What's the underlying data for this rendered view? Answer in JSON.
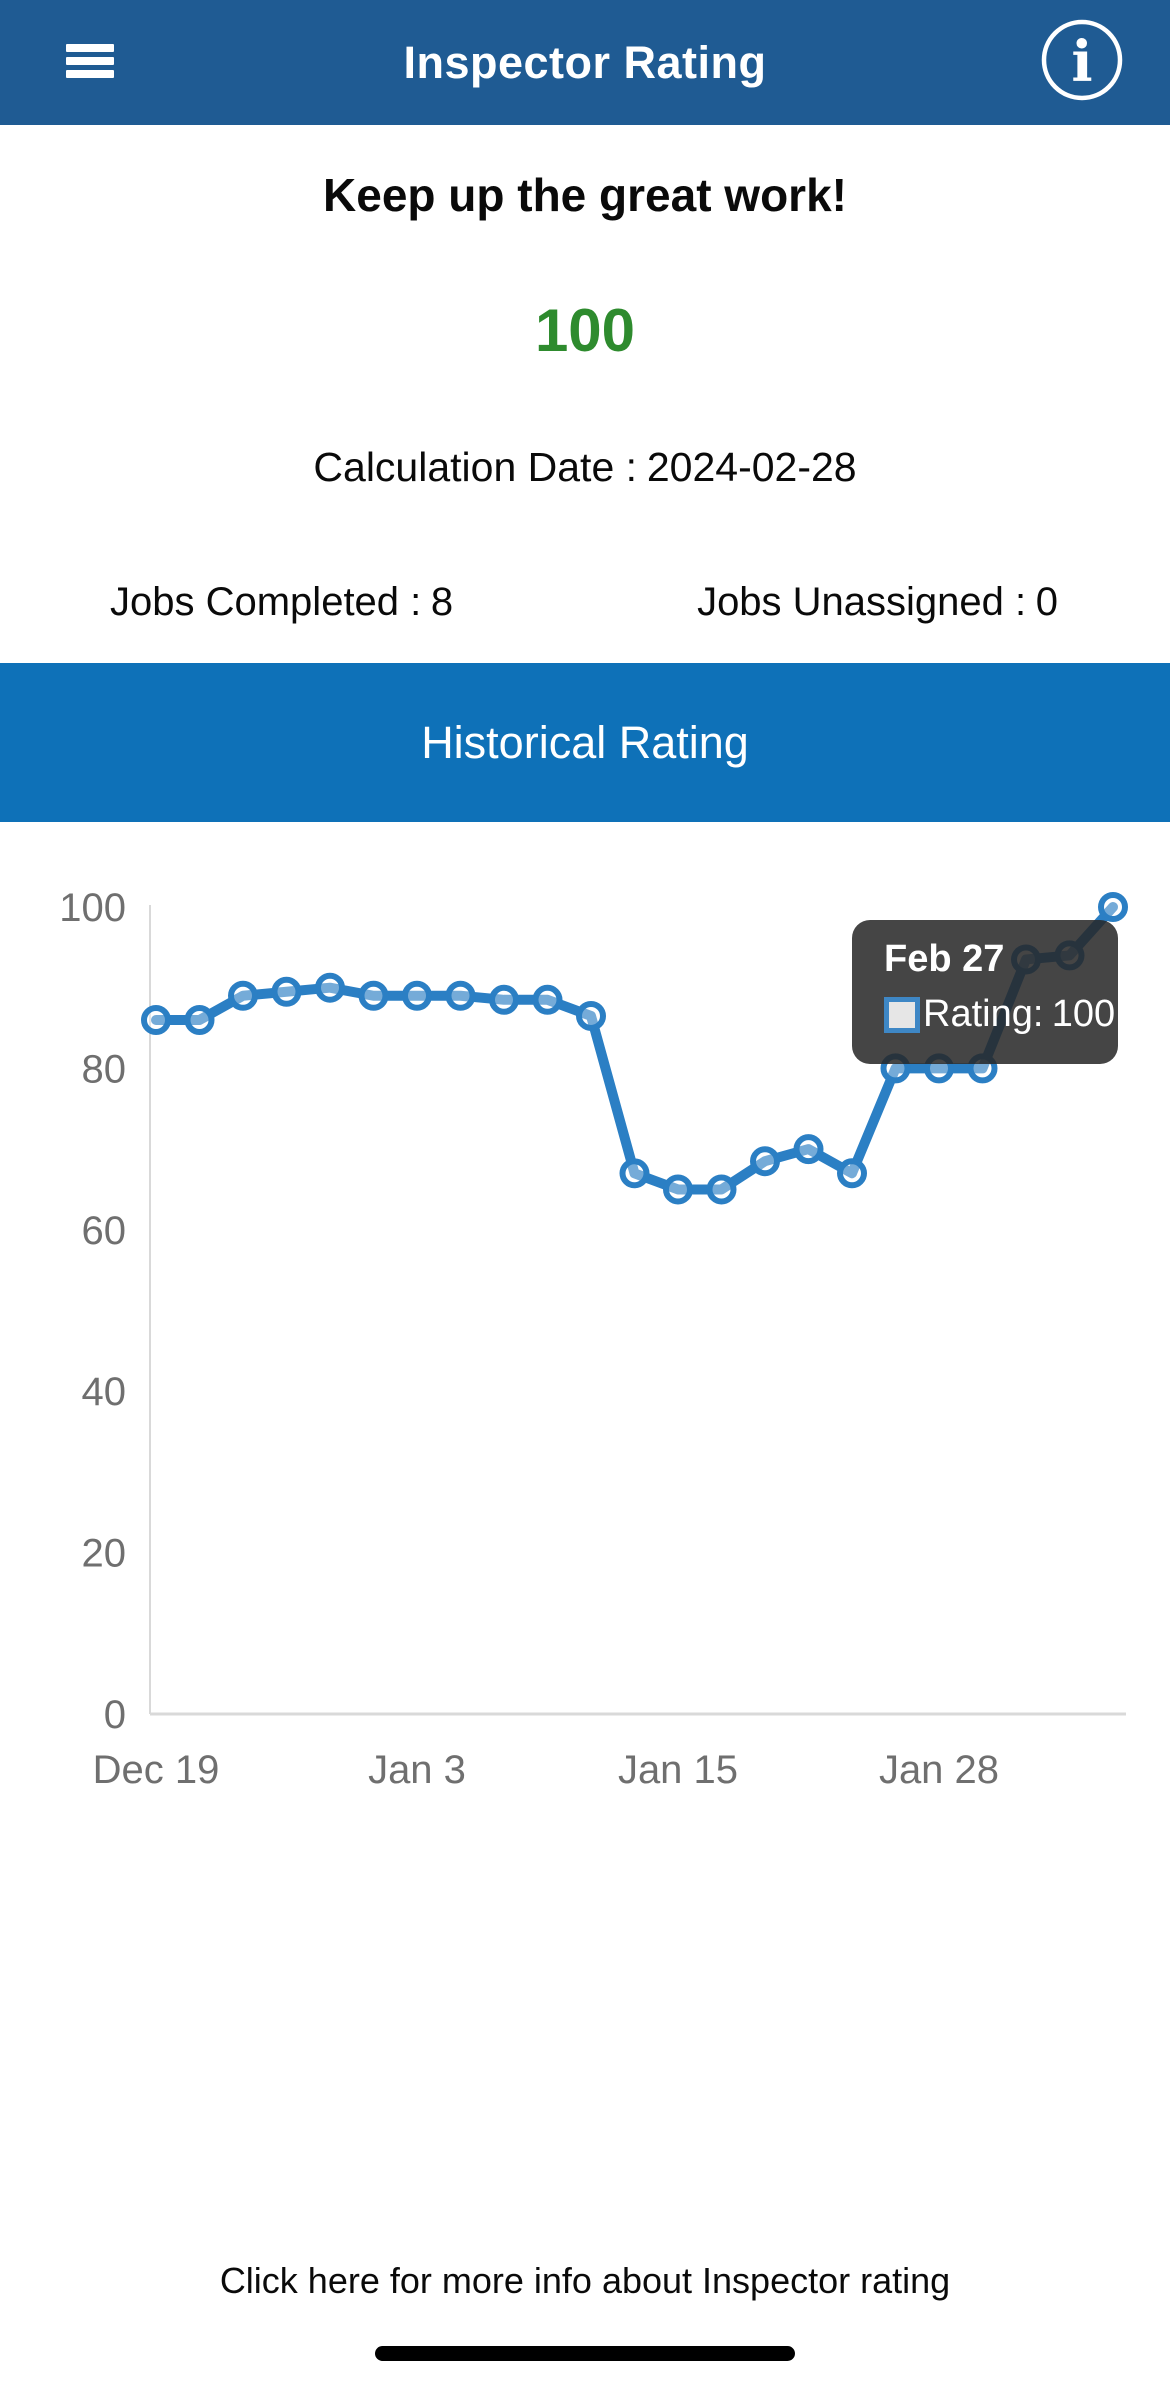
{
  "header": {
    "title": "Inspector Rating",
    "background_color": "#1f5b93"
  },
  "status": {
    "message": "Keep up the great work!",
    "score": "100",
    "score_color": "#2e8b2e",
    "calculation_date_label": "Calculation Date :",
    "calculation_date_value": "2024-02-28",
    "jobs_completed_label": "Jobs Completed :",
    "jobs_completed_value": "8",
    "jobs_unassigned_label": "Jobs Unassigned :",
    "jobs_unassigned_value": "0"
  },
  "section": {
    "title": "Historical Rating",
    "background_color": "#0e71b8"
  },
  "chart_data": {
    "type": "line",
    "series_name": "Rating",
    "values": [
      86,
      86,
      89,
      89.5,
      90,
      89,
      89,
      89,
      88.5,
      88.5,
      86.5,
      67,
      65,
      65,
      68.5,
      70,
      67,
      80,
      80,
      80,
      93.5,
      94,
      100
    ],
    "x_tick_labels": [
      {
        "index": 0,
        "label": "Dec 19"
      },
      {
        "index": 6,
        "label": "Jan 3"
      },
      {
        "index": 12,
        "label": "Jan 15"
      },
      {
        "index": 18,
        "label": "Jan 28"
      }
    ],
    "yticks": [
      100,
      80,
      60,
      40,
      20,
      0
    ],
    "ylim": [
      0,
      100
    ],
    "grid": false,
    "highlighted_point_index": 22,
    "line_color": "#2b7fc4",
    "axis_color": "#d9d9d9",
    "tick_color": "#6f6f6f",
    "tooltip": {
      "title": "Feb 27",
      "series_label": "Rating:",
      "value": "100",
      "swatch_color": "#e6e6e6"
    }
  },
  "footer": {
    "link_text": "Click here for more info about Inspector rating"
  }
}
